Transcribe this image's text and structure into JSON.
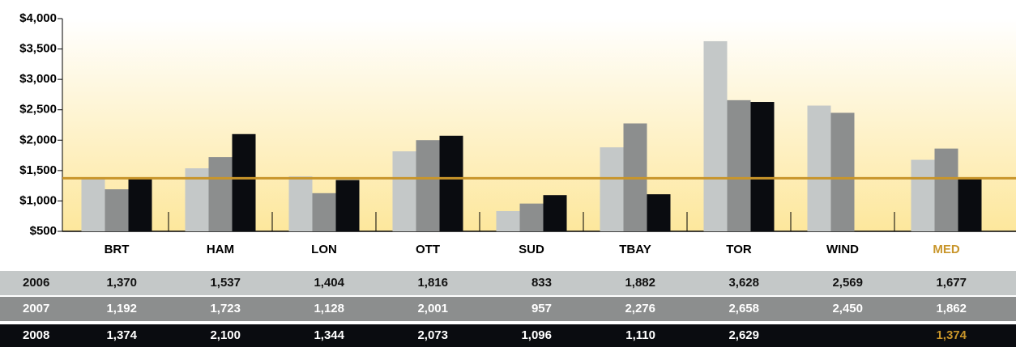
{
  "chart_data": {
    "type": "bar",
    "categories": [
      "BRT",
      "HAM",
      "LON",
      "OTT",
      "SUD",
      "TBAY",
      "TOR",
      "WIND",
      "MED"
    ],
    "highlight_category": "MED",
    "highlight_color": "#c8952a",
    "series": [
      {
        "name": "2006",
        "color": "#c4c8c8",
        "text_color": "#111111",
        "values": [
          1370,
          1537,
          1404,
          1816,
          833,
          1882,
          3628,
          2569,
          1677
        ],
        "value_labels": [
          "1,370",
          "1,537",
          "1,404",
          "1,816",
          "833",
          "1,882",
          "3,628",
          "2,569",
          "1,677"
        ]
      },
      {
        "name": "2007",
        "color": "#8c8e8e",
        "text_color": "#ffffff",
        "values": [
          1192,
          1723,
          1128,
          2001,
          957,
          2276,
          2658,
          2450,
          1862
        ],
        "value_labels": [
          "1,192",
          "1,723",
          "1,128",
          "2,001",
          "957",
          "2,276",
          "2,658",
          "2,450",
          "1,862"
        ]
      },
      {
        "name": "2008",
        "color": "#0a0c10",
        "text_color": "#ffffff",
        "values": [
          1374,
          2100,
          1344,
          2073,
          1096,
          1110,
          2629,
          null,
          1374
        ],
        "value_labels": [
          "1,374",
          "2,100",
          "1,344",
          "2,073",
          "1,096",
          "1,110",
          "2,629",
          null,
          "1,374"
        ]
      }
    ],
    "reference_line": 1374,
    "reference_color": "#c8952a",
    "ylim": [
      500,
      4000
    ],
    "yticks": [
      {
        "value": 500,
        "label": "$500"
      },
      {
        "value": 1000,
        "label": "$1,000"
      },
      {
        "value": 1500,
        "label": "$1,500"
      },
      {
        "value": 2000,
        "label": "$2,000"
      },
      {
        "value": 2500,
        "label": "$2,500"
      },
      {
        "value": 3000,
        "label": "$3,000"
      },
      {
        "value": 3500,
        "label": "$3,500"
      },
      {
        "value": 4000,
        "label": "$4,000"
      }
    ]
  }
}
